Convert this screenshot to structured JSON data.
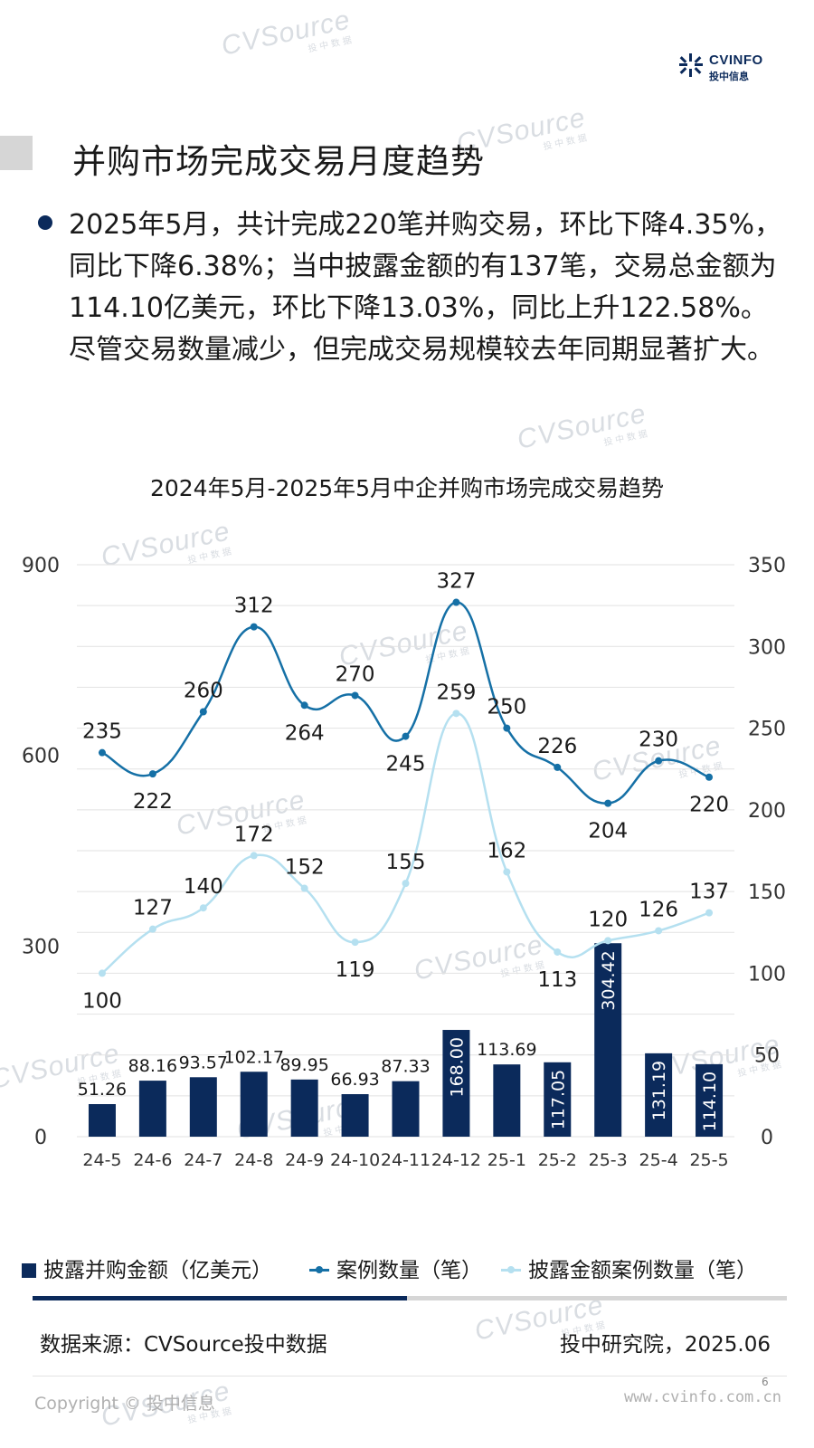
{
  "header": {
    "brand_en": "CVINFO",
    "brand_cn": "投中信息",
    "title": "并购市场完成交易月度趋势"
  },
  "summary": "2025年5月，共计完成220笔并购交易，环比下降4.35%，同比下降6.38%；当中披露金额的有137笔，交易总金额为114.10亿美元，环比下降13.03%，同比上升122.58%。尽管交易数量减少，但完成交易规模较去年同期显著扩大。",
  "watermark": {
    "text": "CVSource",
    "sub": "投中数据"
  },
  "colors": {
    "bar": "#0b2a5b",
    "deal_count": "#1570a6",
    "disclosed_count": "#b5e0f0",
    "title_bar": "#d6d6d6"
  },
  "chart_data": {
    "type": "bar",
    "title": "2024年5月-2025年5月中企并购市场完成交易趋势",
    "categories": [
      "24-5",
      "24-6",
      "24-7",
      "24-8",
      "24-9",
      "24-10",
      "24-11",
      "24-12",
      "25-1",
      "25-2",
      "25-3",
      "25-4",
      "25-5"
    ],
    "y_left": {
      "ylim": [
        0,
        900
      ],
      "ticks": [
        "0",
        "300",
        "600",
        "900"
      ]
    },
    "y_right": {
      "ylim": [
        0,
        350
      ],
      "ticks": [
        "0",
        "50",
        "100",
        "150",
        "200",
        "250",
        "300",
        "350"
      ]
    },
    "grid": true,
    "legend_position": "bottom",
    "series": [
      {
        "name": "披露并购金额（亿美元）",
        "type": "bar",
        "axis": "left",
        "values": [
          51.26,
          88.16,
          93.57,
          102.17,
          89.95,
          66.93,
          87.33,
          168.0,
          113.69,
          117.05,
          304.42,
          131.19,
          114.1
        ],
        "labels": [
          "51.26",
          "88.16",
          "93.57",
          "102.17",
          "89.95",
          "66.93",
          "87.33",
          "168.00",
          "113.69",
          "117.05",
          "304.42",
          "131.19",
          "114.10"
        ]
      },
      {
        "name": "案例数量（笔）",
        "type": "line",
        "axis": "right",
        "values": [
          235,
          222,
          260,
          312,
          264,
          270,
          245,
          327,
          250,
          226,
          204,
          230,
          220
        ]
      },
      {
        "name": "披露金额案例数量（笔）",
        "type": "line",
        "axis": "right",
        "values": [
          100,
          127,
          140,
          172,
          152,
          119,
          155,
          259,
          162,
          113,
          120,
          126,
          137
        ]
      }
    ]
  },
  "footer": {
    "source": "数据来源：CVSource投中数据",
    "org": "投中研究院，2025.06",
    "page": "6",
    "copyright": "Copyright © 投中信息",
    "website": "www.cvinfo.com.cn"
  }
}
